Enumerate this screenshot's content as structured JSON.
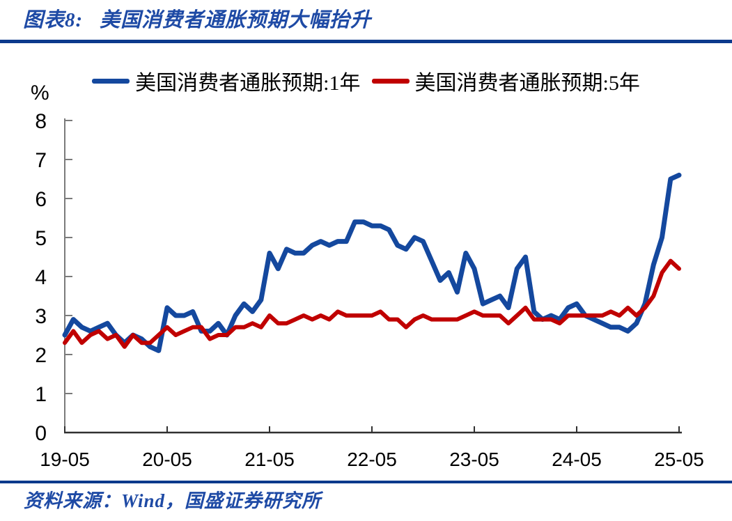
{
  "page": {
    "chart_label": "图表8:",
    "title": "美国消费者通胀预期大幅抬升",
    "source": "资料来源：Wind，国盛证券研究所"
  },
  "colors": {
    "divider": "#0c3a8c",
    "heading_text": "#1e4aa5",
    "series_blue": "#14489e",
    "series_red": "#c00000",
    "y_axis": "#7a7a7a",
    "x_axis": "#303030",
    "tick_text": "#000000"
  },
  "chart_data": {
    "type": "line",
    "title": "美国消费者通胀预期大幅抬升",
    "ylabel": "%",
    "xlabel": "",
    "ylim": [
      0,
      8
    ],
    "yticks": [
      0,
      1,
      2,
      3,
      4,
      5,
      6,
      7,
      8
    ],
    "xticks": [
      "19-05",
      "20-05",
      "21-05",
      "22-05",
      "23-05",
      "24-05",
      "25-05"
    ],
    "grid": false,
    "legend_position": "top",
    "x": [
      "2019-05",
      "2019-06",
      "2019-07",
      "2019-08",
      "2019-09",
      "2019-10",
      "2019-11",
      "2019-12",
      "2020-01",
      "2020-02",
      "2020-03",
      "2020-04",
      "2020-05",
      "2020-06",
      "2020-07",
      "2020-08",
      "2020-09",
      "2020-10",
      "2020-11",
      "2020-12",
      "2021-01",
      "2021-02",
      "2021-03",
      "2021-04",
      "2021-05",
      "2021-06",
      "2021-07",
      "2021-08",
      "2021-09",
      "2021-10",
      "2021-11",
      "2021-12",
      "2022-01",
      "2022-02",
      "2022-03",
      "2022-04",
      "2022-05",
      "2022-06",
      "2022-07",
      "2022-08",
      "2022-09",
      "2022-10",
      "2022-11",
      "2022-12",
      "2023-01",
      "2023-02",
      "2023-03",
      "2023-04",
      "2023-05",
      "2023-06",
      "2023-07",
      "2023-08",
      "2023-09",
      "2023-10",
      "2023-11",
      "2023-12",
      "2024-01",
      "2024-02",
      "2024-03",
      "2024-04",
      "2024-05",
      "2024-06",
      "2024-07",
      "2024-08",
      "2024-09",
      "2024-10",
      "2024-11",
      "2024-12",
      "2025-01",
      "2025-02",
      "2025-03",
      "2025-04",
      "2025-05"
    ],
    "series": [
      {
        "name": "美国消费者通胀预期:1年",
        "color": "#14489e",
        "stroke_width": 7,
        "values": [
          2.5,
          2.9,
          2.7,
          2.6,
          2.7,
          2.8,
          2.5,
          2.3,
          2.5,
          2.4,
          2.2,
          2.1,
          3.2,
          3.0,
          3.0,
          3.1,
          2.6,
          2.6,
          2.8,
          2.5,
          3.0,
          3.3,
          3.1,
          3.4,
          4.6,
          4.2,
          4.7,
          4.6,
          4.6,
          4.8,
          4.9,
          4.8,
          4.9,
          4.9,
          5.4,
          5.4,
          5.3,
          5.3,
          5.2,
          4.8,
          4.7,
          5.0,
          4.9,
          4.4,
          3.9,
          4.1,
          3.6,
          4.6,
          4.2,
          3.3,
          3.4,
          3.5,
          3.2,
          4.2,
          4.5,
          3.1,
          2.9,
          3.0,
          2.9,
          3.2,
          3.3,
          3.0,
          2.9,
          2.8,
          2.7,
          2.7,
          2.6,
          2.8,
          3.3,
          4.3,
          5.0,
          6.5,
          6.6
        ]
      },
      {
        "name": "美国消费者通胀预期:5年",
        "color": "#c00000",
        "stroke_width": 6,
        "values": [
          2.3,
          2.6,
          2.3,
          2.5,
          2.6,
          2.4,
          2.5,
          2.2,
          2.5,
          2.3,
          2.3,
          2.5,
          2.7,
          2.5,
          2.6,
          2.7,
          2.7,
          2.4,
          2.5,
          2.5,
          2.7,
          2.7,
          2.8,
          2.7,
          3.0,
          2.8,
          2.8,
          2.9,
          3.0,
          2.9,
          3.0,
          2.9,
          3.1,
          3.0,
          3.0,
          3.0,
          3.0,
          3.1,
          2.9,
          2.9,
          2.7,
          2.9,
          3.0,
          2.9,
          2.9,
          2.9,
          2.9,
          3.0,
          3.1,
          3.0,
          3.0,
          3.0,
          2.8,
          3.0,
          3.2,
          2.9,
          2.9,
          2.9,
          2.8,
          3.0,
          3.0,
          3.0,
          3.0,
          3.0,
          3.1,
          3.0,
          3.2,
          3.0,
          3.2,
          3.5,
          4.1,
          4.4,
          4.2
        ]
      }
    ]
  }
}
